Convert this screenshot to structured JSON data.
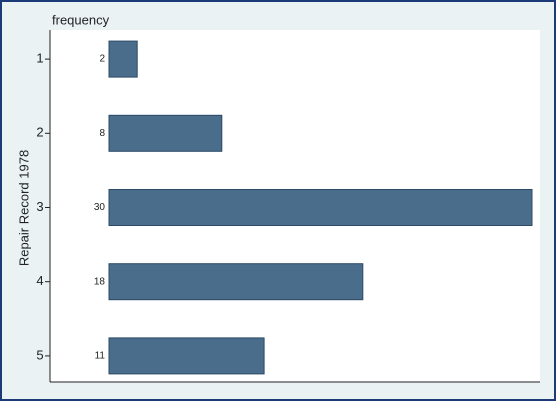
{
  "chart_data": {
    "type": "hbar",
    "value_axis_title": "frequency",
    "category_axis_title": "Repair Record 1978",
    "categories": [
      "1",
      "2",
      "3",
      "4",
      "5"
    ],
    "values": [
      2,
      8,
      30,
      18,
      11
    ],
    "color": "#4a6d8c",
    "xlim": [
      0,
      30
    ],
    "data_labels": true
  }
}
